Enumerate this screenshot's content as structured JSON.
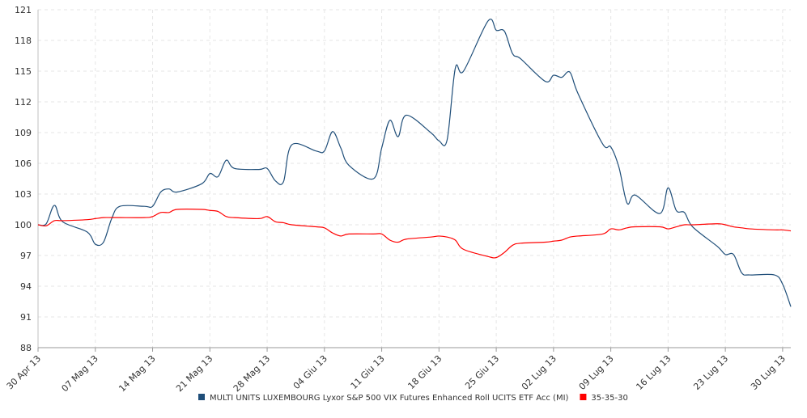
{
  "chart_data": {
    "type": "line",
    "title": "",
    "xlabel": "",
    "ylabel": "",
    "ylim": [
      88,
      121
    ],
    "yticks": [
      88,
      91,
      94,
      97,
      100,
      103,
      106,
      109,
      112,
      115,
      118,
      121
    ],
    "xlim": [
      "2013-04-30",
      "2013-07-31"
    ],
    "xticks": [
      {
        "date": "2013-04-30",
        "label": "30 Apr 13"
      },
      {
        "date": "2013-05-07",
        "label": "07 Mag 13"
      },
      {
        "date": "2013-05-14",
        "label": "14 Mag 13"
      },
      {
        "date": "2013-05-21",
        "label": "21 Mag 13"
      },
      {
        "date": "2013-05-28",
        "label": "28 Mag 13"
      },
      {
        "date": "2013-06-04",
        "label": "04 Giu 13"
      },
      {
        "date": "2013-06-11",
        "label": "11 Giu 13"
      },
      {
        "date": "2013-06-18",
        "label": "18 Giu 13"
      },
      {
        "date": "2013-06-25",
        "label": "25 Giu 13"
      },
      {
        "date": "2013-07-02",
        "label": "02 Lug 13"
      },
      {
        "date": "2013-07-09",
        "label": "09 Lug 13"
      },
      {
        "date": "2013-07-16",
        "label": "16 Lug 13"
      },
      {
        "date": "2013-07-23",
        "label": "23 Lug 13"
      },
      {
        "date": "2013-07-30",
        "label": "30 Lug 13"
      }
    ],
    "grid": true,
    "legend_position": "bottom-center",
    "series": [
      {
        "name": "MULTI UNITS LUXEMBOURG Lyxor S&P 500 VIX Futures Enhanced Roll UCITS ETF Acc (MI)",
        "color": "#1f4e79",
        "points": [
          [
            "2013-04-30",
            100.0
          ],
          [
            "2013-05-01",
            100.1
          ],
          [
            "2013-05-02",
            101.9
          ],
          [
            "2013-05-03",
            100.3
          ],
          [
            "2013-05-06",
            99.3
          ],
          [
            "2013-05-07",
            98.1
          ],
          [
            "2013-05-08",
            98.3
          ],
          [
            "2013-05-09",
            100.6
          ],
          [
            "2013-05-10",
            101.8
          ],
          [
            "2013-05-13",
            101.8
          ],
          [
            "2013-05-14",
            101.8
          ],
          [
            "2013-05-15",
            103.2
          ],
          [
            "2013-05-16",
            103.5
          ],
          [
            "2013-05-17",
            103.2
          ],
          [
            "2013-05-20",
            104.0
          ],
          [
            "2013-05-21",
            105.0
          ],
          [
            "2013-05-22",
            104.7
          ],
          [
            "2013-05-23",
            106.3
          ],
          [
            "2013-05-24",
            105.5
          ],
          [
            "2013-05-27",
            105.4
          ],
          [
            "2013-05-28",
            105.5
          ],
          [
            "2013-05-29",
            104.3
          ],
          [
            "2013-05-30",
            104.2
          ],
          [
            "2013-05-31",
            107.8
          ],
          [
            "2013-06-03",
            107.2
          ],
          [
            "2013-06-04",
            107.2
          ],
          [
            "2013-06-05",
            109.1
          ],
          [
            "2013-06-06",
            107.5
          ],
          [
            "2013-06-07",
            105.8
          ],
          [
            "2013-06-10",
            104.5
          ],
          [
            "2013-06-11",
            107.5
          ],
          [
            "2013-06-12",
            110.2
          ],
          [
            "2013-06-13",
            108.6
          ],
          [
            "2013-06-14",
            110.7
          ],
          [
            "2013-06-17",
            109.0
          ],
          [
            "2013-06-18",
            108.2
          ],
          [
            "2013-06-19",
            108.3
          ],
          [
            "2013-06-20",
            115.3
          ],
          [
            "2013-06-21",
            115.0
          ],
          [
            "2013-06-24",
            119.9
          ],
          [
            "2013-06-25",
            119.0
          ],
          [
            "2013-06-26",
            118.9
          ],
          [
            "2013-06-27",
            116.7
          ],
          [
            "2013-06-28",
            116.2
          ],
          [
            "2013-07-01",
            114.0
          ],
          [
            "2013-07-02",
            114.6
          ],
          [
            "2013-07-03",
            114.4
          ],
          [
            "2013-07-04",
            114.9
          ],
          [
            "2013-07-05",
            112.8
          ],
          [
            "2013-07-08",
            107.9
          ],
          [
            "2013-07-09",
            107.6
          ],
          [
            "2013-07-10",
            105.6
          ],
          [
            "2013-07-11",
            102.1
          ],
          [
            "2013-07-12",
            102.9
          ],
          [
            "2013-07-15",
            101.1
          ],
          [
            "2013-07-16",
            103.6
          ],
          [
            "2013-07-17",
            101.4
          ],
          [
            "2013-07-18",
            101.2
          ],
          [
            "2013-07-19",
            99.8
          ],
          [
            "2013-07-22",
            97.9
          ],
          [
            "2013-07-23",
            97.1
          ],
          [
            "2013-07-24",
            97.1
          ],
          [
            "2013-07-25",
            95.3
          ],
          [
            "2013-07-26",
            95.1
          ],
          [
            "2013-07-29",
            95.1
          ],
          [
            "2013-07-30",
            94.2
          ],
          [
            "2013-07-31",
            92.0
          ]
        ]
      },
      {
        "name": "35-35-30",
        "color": "#ff0000",
        "points": [
          [
            "2013-04-30",
            100.0
          ],
          [
            "2013-05-01",
            99.9
          ],
          [
            "2013-05-02",
            100.4
          ],
          [
            "2013-05-03",
            100.4
          ],
          [
            "2013-05-06",
            100.5
          ],
          [
            "2013-05-07",
            100.6
          ],
          [
            "2013-05-08",
            100.7
          ],
          [
            "2013-05-09",
            100.7
          ],
          [
            "2013-05-10",
            100.7
          ],
          [
            "2013-05-13",
            100.7
          ],
          [
            "2013-05-14",
            100.8
          ],
          [
            "2013-05-15",
            101.2
          ],
          [
            "2013-05-16",
            101.2
          ],
          [
            "2013-05-17",
            101.5
          ],
          [
            "2013-05-20",
            101.5
          ],
          [
            "2013-05-21",
            101.4
          ],
          [
            "2013-05-22",
            101.3
          ],
          [
            "2013-05-23",
            100.8
          ],
          [
            "2013-05-24",
            100.7
          ],
          [
            "2013-05-27",
            100.6
          ],
          [
            "2013-05-28",
            100.8
          ],
          [
            "2013-05-29",
            100.3
          ],
          [
            "2013-05-30",
            100.2
          ],
          [
            "2013-05-31",
            100.0
          ],
          [
            "2013-06-03",
            99.8
          ],
          [
            "2013-06-04",
            99.7
          ],
          [
            "2013-06-05",
            99.2
          ],
          [
            "2013-06-06",
            98.9
          ],
          [
            "2013-06-07",
            99.1
          ],
          [
            "2013-06-10",
            99.1
          ],
          [
            "2013-06-11",
            99.1
          ],
          [
            "2013-06-12",
            98.5
          ],
          [
            "2013-06-13",
            98.3
          ],
          [
            "2013-06-14",
            98.6
          ],
          [
            "2013-06-17",
            98.8
          ],
          [
            "2013-06-18",
            98.9
          ],
          [
            "2013-06-19",
            98.8
          ],
          [
            "2013-06-20",
            98.5
          ],
          [
            "2013-06-21",
            97.6
          ],
          [
            "2013-06-24",
            96.9
          ],
          [
            "2013-06-25",
            96.8
          ],
          [
            "2013-06-26",
            97.3
          ],
          [
            "2013-06-27",
            98.0
          ],
          [
            "2013-06-28",
            98.2
          ],
          [
            "2013-07-01",
            98.3
          ],
          [
            "2013-07-02",
            98.4
          ],
          [
            "2013-07-03",
            98.5
          ],
          [
            "2013-07-04",
            98.8
          ],
          [
            "2013-07-05",
            98.9
          ],
          [
            "2013-07-08",
            99.1
          ],
          [
            "2013-07-09",
            99.6
          ],
          [
            "2013-07-10",
            99.5
          ],
          [
            "2013-07-11",
            99.7
          ],
          [
            "2013-07-12",
            99.8
          ],
          [
            "2013-07-15",
            99.8
          ],
          [
            "2013-07-16",
            99.6
          ],
          [
            "2013-07-17",
            99.8
          ],
          [
            "2013-07-18",
            100.0
          ],
          [
            "2013-07-19",
            100.0
          ],
          [
            "2013-07-22",
            100.1
          ],
          [
            "2013-07-23",
            100.0
          ],
          [
            "2013-07-24",
            99.8
          ],
          [
            "2013-07-25",
            99.7
          ],
          [
            "2013-07-26",
            99.6
          ],
          [
            "2013-07-29",
            99.5
          ],
          [
            "2013-07-30",
            99.5
          ],
          [
            "2013-07-31",
            99.4
          ]
        ]
      }
    ]
  }
}
